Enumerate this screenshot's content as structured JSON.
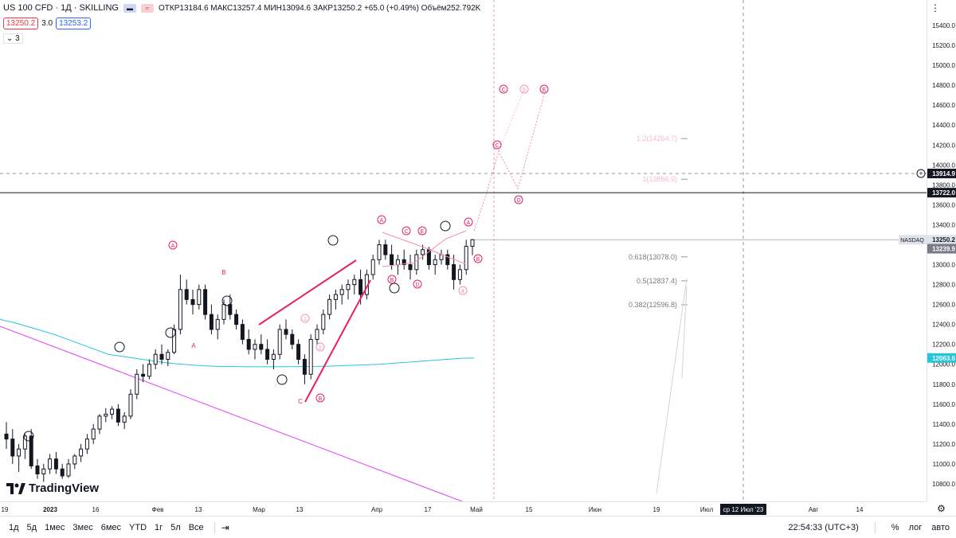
{
  "header": {
    "symbol": "US 100 CFD · 1Д · SKILLING",
    "ohlc": "ОТКР13184.6  МАКС13257.4  МИН13094.6  ЗАКР13250.2  +65.0 (+0.49%)  Объём252.792K"
  },
  "price_boxes": {
    "bid": "13250.2",
    "spread": "3.0",
    "ask": "13253.2"
  },
  "indicator_row": "3",
  "logo_text": "TradingView",
  "price_axis": {
    "ticks": [
      "15400.0",
      "15200.0",
      "15000.0",
      "14800.0",
      "14600.0",
      "14400.0",
      "14200.0",
      "14000.0",
      "13800.0",
      "13600.0",
      "13400.0",
      "13200.0",
      "13000.0",
      "12800.0",
      "12600.0",
      "12400.0",
      "12200.0",
      "12000.0",
      "11800.0",
      "11600.0",
      "11400.0",
      "11200.0",
      "11000.0",
      "10800.0"
    ],
    "labels": {
      "crosshair": "13914.9",
      "hline": "13722.0",
      "nasdaq_tag": "NASDAQ",
      "last": "13250.2",
      "last2": "13239.9",
      "ma": "12063.6"
    }
  },
  "time_axis": {
    "ticks": [
      "19",
      "2023",
      "16",
      "Фев",
      "13",
      "Мар",
      "13",
      "Апр",
      "17",
      "Май",
      "15",
      "Июн",
      "19",
      "Июл",
      "Авг",
      "14"
    ],
    "crosshair_label": "ср 12 Июл '23"
  },
  "fib_labels": [
    "1.2(14264.7)",
    "1(13856.9)",
    "0.618(13078.0)",
    "0.5(12837.4)",
    "0.382(12596.8)"
  ],
  "wave_labels": {
    "A1": "A",
    "B1": "B",
    "A2": "A",
    "C2": "C",
    "B2": "B",
    "A3": "A",
    "C3": "C",
    "E3": "E",
    "B3": "B",
    "D3": "D",
    "A4": "A",
    "B4": "B",
    "w1": "1",
    "w2": "2",
    "w4": "4",
    "C4": "C",
    "D4": "D",
    "C5": "C",
    "w5": "5",
    "E5": "E",
    "lblA": "A",
    "lblC": "C",
    "lblB": "B"
  },
  "bottom_bar": {
    "timeframes": [
      "1д",
      "5д",
      "1мес",
      "3мес",
      "6мес",
      "YTD",
      "1г",
      "5л",
      "Все"
    ],
    "clock": "22:54:33 (UTC+3)",
    "percent": "%",
    "log": "лог",
    "auto": "авто"
  },
  "chart_data": {
    "type": "candlestick",
    "y_range": [
      10600,
      15600
    ],
    "x_labels": [
      "19",
      "2023",
      "16",
      "Фев",
      "13",
      "Мар",
      "13",
      "Апр",
      "17",
      "Май",
      "15",
      "Июн",
      "19",
      "Июл",
      "Авг",
      "14"
    ],
    "candles": [
      [
        11300,
        11420,
        11150,
        11250
      ],
      [
        11250,
        11350,
        11000,
        11080
      ],
      [
        11080,
        11200,
        10920,
        11150
      ],
      [
        11150,
        11300,
        11050,
        11280
      ],
      [
        11280,
        11350,
        10950,
        10980
      ],
      [
        10980,
        11050,
        10850,
        10900
      ],
      [
        10900,
        11000,
        10820,
        10950
      ],
      [
        10950,
        11100,
        10900,
        11050
      ],
      [
        11050,
        11120,
        10900,
        10950
      ],
      [
        10950,
        11000,
        10850,
        10880
      ],
      [
        10880,
        11050,
        10860,
        11000
      ],
      [
        11000,
        11100,
        10950,
        11080
      ],
      [
        11080,
        11200,
        11020,
        11150
      ],
      [
        11150,
        11300,
        11100,
        11250
      ],
      [
        11250,
        11400,
        11200,
        11350
      ],
      [
        11350,
        11500,
        11300,
        11480
      ],
      [
        11480,
        11560,
        11420,
        11500
      ],
      [
        11500,
        11580,
        11450,
        11550
      ],
      [
        11550,
        11600,
        11380,
        11420
      ],
      [
        11420,
        11520,
        11350,
        11480
      ],
      [
        11480,
        11750,
        11450,
        11700
      ],
      [
        11700,
        11950,
        11650,
        11900
      ],
      [
        11900,
        12000,
        11820,
        11880
      ],
      [
        11880,
        12050,
        11850,
        12000
      ],
      [
        12000,
        12150,
        11950,
        12100
      ],
      [
        12100,
        12200,
        12000,
        12050
      ],
      [
        12050,
        12150,
        11980,
        12120
      ],
      [
        12120,
        12400,
        12100,
        12350
      ],
      [
        12350,
        12900,
        12300,
        12750
      ],
      [
        12750,
        12850,
        12600,
        12650
      ],
      [
        12650,
        12750,
        12500,
        12600
      ],
      [
        12600,
        12800,
        12550,
        12750
      ],
      [
        12750,
        12800,
        12450,
        12500
      ],
      [
        12500,
        12600,
        12300,
        12350
      ],
      [
        12350,
        12500,
        12250,
        12450
      ],
      [
        12450,
        12650,
        12400,
        12600
      ],
      [
        12600,
        12700,
        12450,
        12500
      ],
      [
        12500,
        12550,
        12350,
        12400
      ],
      [
        12400,
        12450,
        12200,
        12250
      ],
      [
        12250,
        12350,
        12100,
        12150
      ],
      [
        12150,
        12250,
        12050,
        12200
      ],
      [
        12200,
        12300,
        12100,
        12150
      ],
      [
        12150,
        12250,
        12000,
        12050
      ],
      [
        12050,
        12150,
        11950,
        12100
      ],
      [
        12100,
        12400,
        12050,
        12350
      ],
      [
        12350,
        12450,
        12250,
        12300
      ],
      [
        12300,
        12350,
        12150,
        12200
      ],
      [
        12200,
        12250,
        12000,
        12050
      ],
      [
        12050,
        12100,
        11800,
        11900
      ],
      [
        11900,
        12300,
        11850,
        12250
      ],
      [
        12250,
        12400,
        12200,
        12350
      ],
      [
        12350,
        12550,
        12300,
        12500
      ],
      [
        12500,
        12700,
        12450,
        12650
      ],
      [
        12650,
        12750,
        12550,
        12700
      ],
      [
        12700,
        12800,
        12600,
        12750
      ],
      [
        12750,
        12850,
        12650,
        12800
      ],
      [
        12800,
        12900,
        12700,
        12850
      ],
      [
        12850,
        12950,
        12600,
        12700
      ],
      [
        12700,
        12950,
        12650,
        12900
      ],
      [
        12900,
        13100,
        12850,
        13050
      ],
      [
        13050,
        13250,
        13000,
        13200
      ],
      [
        13200,
        13250,
        13050,
        13100
      ],
      [
        13100,
        13200,
        12950,
        13000
      ],
      [
        13000,
        13100,
        12900,
        13050
      ],
      [
        13050,
        13150,
        12950,
        13000
      ],
      [
        13000,
        13100,
        12850,
        12950
      ],
      [
        12950,
        13150,
        12900,
        13100
      ],
      [
        13100,
        13200,
        13050,
        13150
      ],
      [
        13150,
        13180,
        12950,
        13000
      ],
      [
        13000,
        13100,
        12900,
        13050
      ],
      [
        13050,
        13150,
        13000,
        13100
      ],
      [
        13100,
        13150,
        12950,
        13000
      ],
      [
        13000,
        13100,
        12750,
        12850
      ],
      [
        12850,
        13000,
        12800,
        12950
      ],
      [
        12950,
        13250,
        12900,
        13184.6
      ],
      [
        13184.6,
        13257.4,
        13094.6,
        13250.2
      ]
    ],
    "moving_average": [
      12450,
      12420,
      12380,
      12340,
      12300,
      12250,
      12200,
      12150,
      12100,
      12080,
      12060,
      12040,
      12020,
      12005,
      11995,
      11985,
      11980,
      11978,
      11976,
      11975,
      11975,
      11976,
      11977,
      11978,
      11980,
      11985,
      11990,
      11995,
      12000,
      12010,
      12020,
      12030,
      12040,
      12050,
      12060,
      12063.6
    ],
    "levels": {
      "hline": 13722.0,
      "crosshair": 13914.9,
      "last": 13250.2
    },
    "fib_levels": [
      14264.7,
      13856.9,
      13078.0,
      12837.4,
      12596.8
    ]
  }
}
